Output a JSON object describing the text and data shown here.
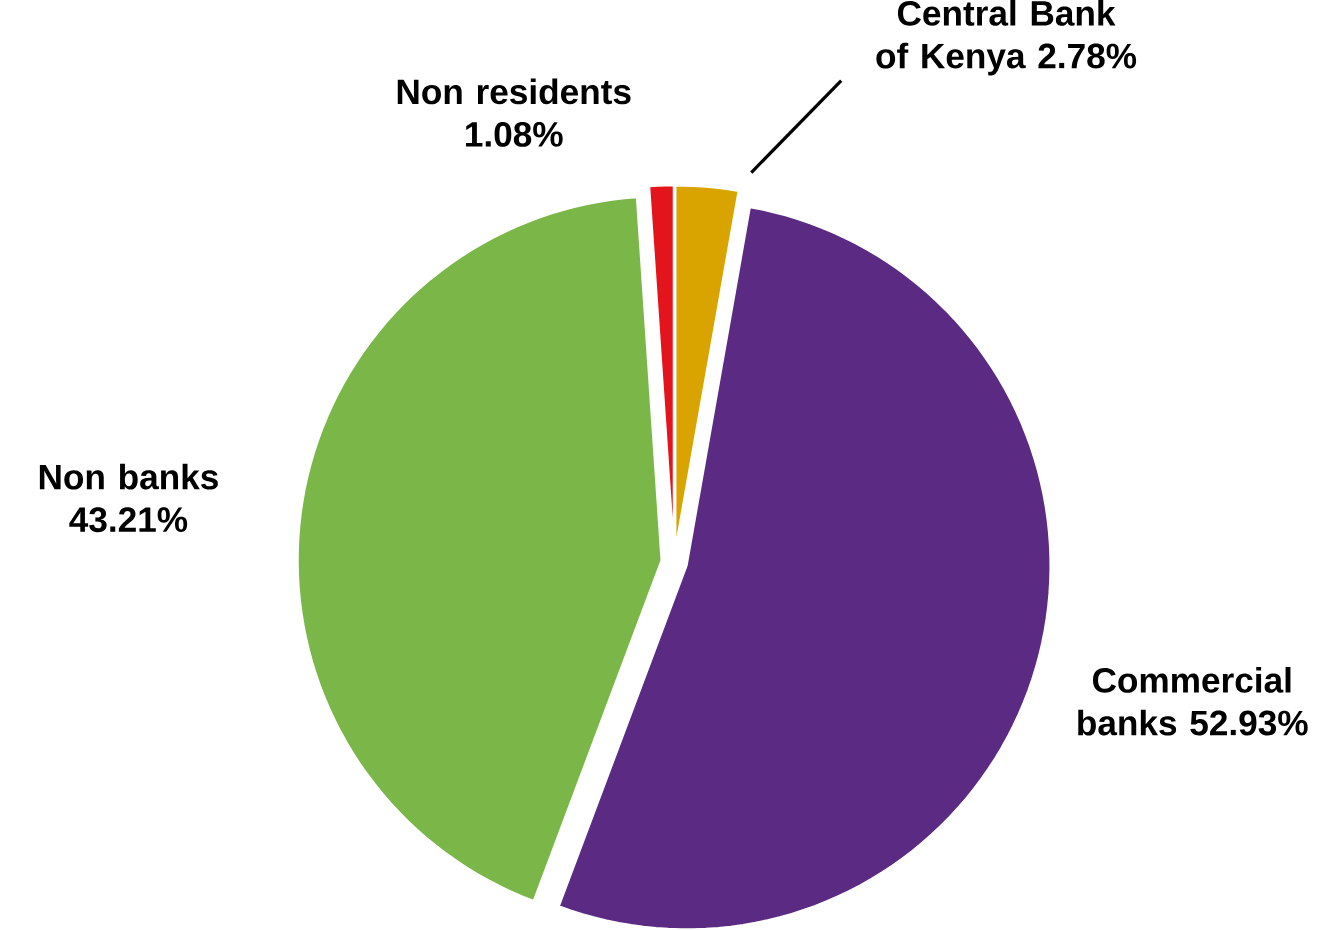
{
  "chart_data": {
    "type": "pie",
    "categories": [
      "Central Bank of Kenya",
      "Commercial banks",
      "Non banks",
      "Non residents"
    ],
    "values": [
      2.78,
      52.93,
      43.21,
      1.08
    ],
    "value_labels": [
      "2.78%",
      "52.93%",
      "43.21%",
      "1.08%"
    ],
    "colors": [
      "#d9a400",
      "#5b2a82",
      "#7ab648",
      "#e3141c"
    ],
    "legend": false
  }
}
